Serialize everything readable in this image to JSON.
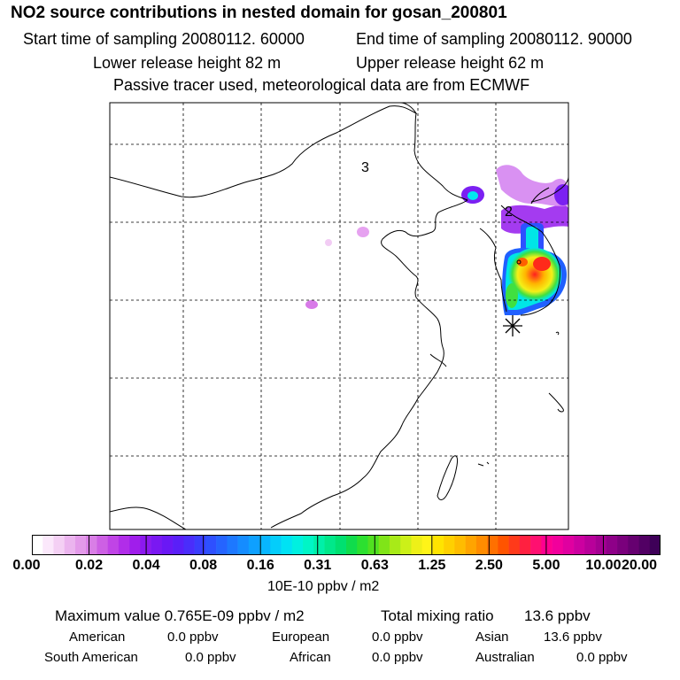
{
  "header": {
    "title": "NO2 source contributions in nested domain for gosan_200801",
    "start_label": "Start time of sampling 20080112. 60000",
    "end_label": "End time of sampling 20080112. 90000",
    "lower_label": "Lower release height   82 m",
    "upper_label": "Upper release height   62 m",
    "note": "Passive tracer used, meteorological data are from ECMWF"
  },
  "map": {
    "contour_label_1": "3",
    "contour_label_2": "2"
  },
  "colorbar": {
    "ticks": [
      "0.00",
      "0.02",
      "0.04",
      "0.08",
      "0.16",
      "0.31",
      "0.63",
      "1.25",
      "2.50",
      "5.00",
      "10.00",
      "20.00"
    ],
    "colors": [
      "#ffffff",
      "#fbe8fb",
      "#f4d0f4",
      "#ebb4ee",
      "#e39ae9",
      "#d97ee6",
      "#cd60e4",
      "#c044e6",
      "#b12de9",
      "#a01eeb",
      "#8c19ef",
      "#7a18f2",
      "#6a18f5",
      "#5a1ff8",
      "#4a2dfb",
      "#3a3dfd",
      "#2e50ff",
      "#2564ff",
      "#1d78ff",
      "#158cff",
      "#0ea0ff",
      "#08b6ff",
      "#04cdfb",
      "#00e2f4",
      "#00f0e0",
      "#00f5c6",
      "#00f0a8",
      "#00e88a",
      "#00e070",
      "#10dc4c",
      "#2ce030",
      "#50e020",
      "#80e418",
      "#a8ea18",
      "#ccf018",
      "#eef018",
      "#fff418",
      "#ffe400",
      "#ffd000",
      "#ffbc00",
      "#ffa400",
      "#ff8c00",
      "#ff7000",
      "#ff5400",
      "#ff3a1a",
      "#ff2040",
      "#ff1070",
      "#ff0090",
      "#f2009c",
      "#e000a0",
      "#cc00a0",
      "#b8009a",
      "#a40092",
      "#8e0088",
      "#7a007c",
      "#660070",
      "#520064",
      "#3e0058"
    ],
    "units": "10E-10 ppbv / m2"
  },
  "summary": {
    "max_line": "Maximum value  0.765E-09 ppbv / m2",
    "total_label": "Total mixing ratio",
    "total_value": "13.6 ppbv",
    "regions": [
      {
        "name": "American",
        "value": "0.0 ppbv"
      },
      {
        "name": "European",
        "value": "0.0 ppbv"
      },
      {
        "name": "Asian",
        "value": "13.6 ppbv"
      },
      {
        "name": "South American",
        "value": "0.0 ppbv"
      },
      {
        "name": "African",
        "value": "0.0 ppbv"
      },
      {
        "name": "Australian",
        "value": "0.0 ppbv"
      }
    ]
  }
}
